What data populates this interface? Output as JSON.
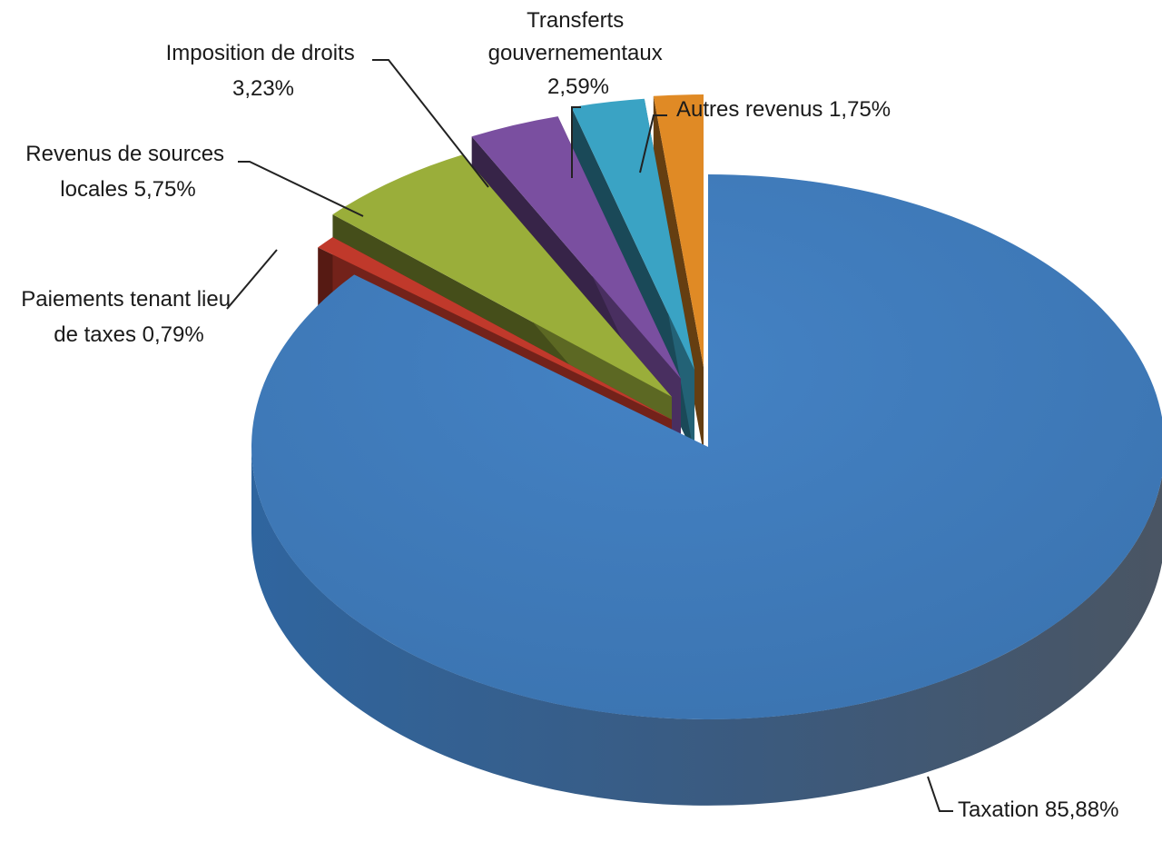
{
  "chart_data": {
    "type": "pie",
    "style": "3d-exploded",
    "unit": "%",
    "slices": [
      {
        "name": "Taxation",
        "value": 85.88,
        "value_label": "85,88%",
        "color": "#3c78b8"
      },
      {
        "name": "Paiements tenant lieu de taxes",
        "value": 0.79,
        "value_label": "0,79%",
        "color": "#c0392b"
      },
      {
        "name": "Revenus de sources locales",
        "value": 5.75,
        "value_label": "5,75%",
        "color": "#9aae3a"
      },
      {
        "name": "Imposition de droits",
        "value": 3.23,
        "value_label": "3,23%",
        "color": "#7a4fa0"
      },
      {
        "name": "Transferts gouvernementaux",
        "value": 2.59,
        "value_label": "2,59%",
        "color": "#3aa3c4"
      },
      {
        "name": "Autres revenus",
        "value": 1.75,
        "value_label": "1,75%",
        "color": "#e08a25"
      }
    ],
    "labels": {
      "taxation": [
        "Taxation 85,88%"
      ],
      "paiements": [
        "Paiements tenant lieu",
        "de taxes 0,79%"
      ],
      "revenus": [
        "Revenus de sources",
        "locales 5,75%"
      ],
      "imposition": [
        "Imposition de droits",
        "3,23%"
      ],
      "transferts": [
        "Transferts",
        "gouvernementaux",
        "2,59%"
      ],
      "autres": [
        "Autres revenus 1,75%"
      ]
    }
  }
}
